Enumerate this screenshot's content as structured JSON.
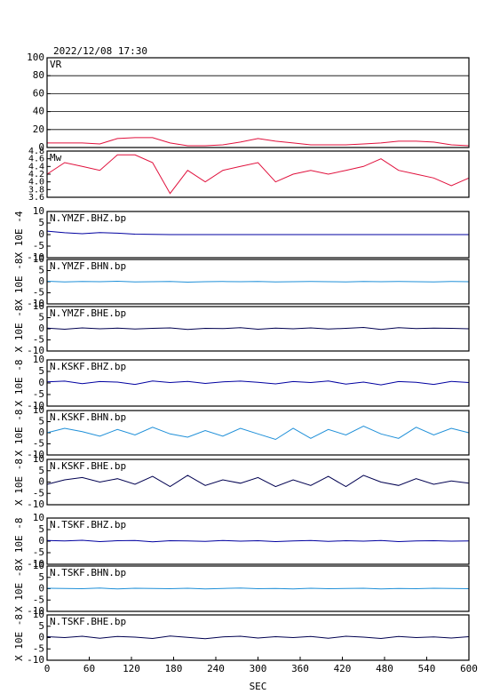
{
  "header": {
    "title": "2022/12/08 17:30"
  },
  "chart_data": [
    {
      "type": "line",
      "label": "VR",
      "xlim": [
        0,
        600
      ],
      "ylim": [
        0,
        100
      ],
      "yticks": [
        0,
        20,
        40,
        60,
        80,
        100
      ],
      "grid": true,
      "x": [
        0,
        25,
        50,
        75,
        100,
        125,
        150,
        175,
        200,
        225,
        250,
        275,
        300,
        325,
        350,
        375,
        400,
        425,
        450,
        475,
        500,
        525,
        550,
        575,
        600
      ],
      "series": [
        {
          "color": "#e0103c",
          "values": [
            5,
            5,
            5,
            4,
            10,
            11,
            11,
            5,
            2,
            2,
            3,
            6,
            10,
            7,
            5,
            3,
            3,
            3,
            4,
            5,
            7,
            7,
            6,
            3,
            2
          ]
        }
      ]
    },
    {
      "type": "line",
      "label": "Mw",
      "xlim": [
        0,
        600
      ],
      "ylim": [
        3.6,
        4.8
      ],
      "yticks": [
        3.6,
        3.8,
        {
          "value": 4,
          "label": "4.0"
        },
        4.2,
        4.4,
        4.6,
        4.8
      ],
      "grid": false,
      "x": [
        0,
        25,
        50,
        75,
        100,
        125,
        150,
        175,
        200,
        225,
        250,
        275,
        300,
        325,
        350,
        375,
        400,
        425,
        450,
        475,
        500,
        525,
        550,
        575,
        600
      ],
      "series": [
        {
          "color": "#e0103c",
          "values": [
            4.2,
            4.5,
            4.4,
            4.3,
            4.7,
            4.7,
            4.5,
            3.7,
            4.3,
            4.0,
            4.3,
            4.4,
            4.5,
            4.0,
            4.2,
            4.3,
            4.2,
            4.3,
            4.4,
            4.6,
            4.3,
            4.2,
            4.1,
            3.9,
            4.1
          ]
        }
      ]
    },
    {
      "type": "line",
      "label": "N.YMZF.BHZ.bp",
      "y_label": "X 10E -4",
      "xlim": [
        0,
        600
      ],
      "ylim": [
        -10,
        10
      ],
      "yticks": [
        -10,
        -5,
        0,
        5,
        10
      ],
      "grid": false,
      "x": [
        0,
        25,
        50,
        75,
        100,
        125,
        150,
        175,
        200,
        225,
        250,
        275,
        300,
        325,
        350,
        375,
        400,
        425,
        450,
        475,
        500,
        525,
        550,
        575,
        600
      ],
      "series": [
        {
          "color": "#0000a0",
          "values": [
            1.5,
            0.8,
            0.4,
            0.9,
            0.6,
            0.2,
            0.1,
            0,
            0,
            0,
            0,
            0,
            0,
            0,
            0,
            0,
            0,
            0,
            0,
            0,
            0,
            0,
            0,
            0,
            0
          ]
        }
      ]
    },
    {
      "type": "line",
      "label": "N.YMZF.BHN.bp",
      "y_label": "X 10E -8",
      "xlim": [
        0,
        600
      ],
      "ylim": [
        -10,
        10
      ],
      "yticks": [
        -10,
        -5,
        0,
        5,
        10
      ],
      "grid": false,
      "x": [
        0,
        25,
        50,
        75,
        100,
        125,
        150,
        175,
        200,
        225,
        250,
        275,
        300,
        325,
        350,
        375,
        400,
        425,
        450,
        475,
        500,
        525,
        550,
        575,
        600
      ],
      "series": [
        {
          "color": "#1e8fd8",
          "values": [
            0.2,
            -0.1,
            0.1,
            0,
            0.2,
            -0.1,
            0,
            0.1,
            -0.2,
            0,
            0.1,
            0,
            0.1,
            -0.1,
            0,
            0.1,
            0,
            -0.1,
            0.1,
            0,
            0.1,
            0,
            -0.1,
            0.1,
            0
          ]
        }
      ]
    },
    {
      "type": "line",
      "label": "N.YMZF.BHE.bp",
      "y_label": "X 10E -8",
      "xlim": [
        0,
        600
      ],
      "ylim": [
        -10,
        10
      ],
      "yticks": [
        -10,
        -5,
        0,
        5,
        10
      ],
      "grid": false,
      "x": [
        0,
        25,
        50,
        75,
        100,
        125,
        150,
        175,
        200,
        225,
        250,
        275,
        300,
        325,
        350,
        375,
        400,
        425,
        450,
        475,
        500,
        525,
        550,
        575,
        600
      ],
      "series": [
        {
          "color": "#000050",
          "values": [
            0.3,
            -0.2,
            0.4,
            0,
            0.3,
            -0.1,
            0.2,
            0.4,
            -0.3,
            0.2,
            0.1,
            0.5,
            -0.2,
            0.3,
            0,
            0.4,
            -0.1,
            0.2,
            0.6,
            -0.3,
            0.5,
            0.1,
            0.3,
            0.2,
            0
          ]
        }
      ]
    },
    {
      "type": "line",
      "label": "N.KSKF.BHZ.bp",
      "y_label": "X 10E -8",
      "xlim": [
        0,
        600
      ],
      "ylim": [
        -10,
        10
      ],
      "yticks": [
        -10,
        -5,
        0,
        5,
        10
      ],
      "grid": false,
      "x": [
        0,
        25,
        50,
        75,
        100,
        125,
        150,
        175,
        200,
        225,
        250,
        275,
        300,
        325,
        350,
        375,
        400,
        425,
        450,
        475,
        500,
        525,
        550,
        575,
        600
      ],
      "series": [
        {
          "color": "#0000a0",
          "values": [
            0.5,
            0.8,
            -0.3,
            0.6,
            0.4,
            -0.6,
            0.9,
            0.2,
            0.7,
            -0.2,
            0.5,
            0.8,
            0.3,
            -0.4,
            0.6,
            0.2,
            0.9,
            -0.5,
            0.4,
            -0.8,
            0.6,
            0.3,
            -0.6,
            0.7,
            0.2
          ]
        }
      ]
    },
    {
      "type": "line",
      "label": "N.KSKF.BHN.bp",
      "y_label": "X 10E -8",
      "xlim": [
        0,
        600
      ],
      "ylim": [
        -10,
        10
      ],
      "yticks": [
        -10,
        -5,
        0,
        5,
        10
      ],
      "grid": false,
      "x": [
        0,
        25,
        50,
        75,
        100,
        125,
        150,
        175,
        200,
        225,
        250,
        275,
        300,
        325,
        350,
        375,
        400,
        425,
        450,
        475,
        500,
        525,
        550,
        575,
        600
      ],
      "series": [
        {
          "color": "#1e8fd8",
          "values": [
            0,
            2,
            0.5,
            -1.5,
            1.5,
            -1,
            2.5,
            -0.5,
            -2,
            1,
            -1.5,
            2,
            -0.5,
            -3,
            2,
            -2.5,
            1.5,
            -1,
            3,
            -0.5,
            -2.5,
            2.5,
            -1,
            2,
            0
          ]
        }
      ]
    },
    {
      "type": "line",
      "label": "N.KSKF.BHE.bp",
      "y_label": "X 10E -8",
      "xlim": [
        0,
        600
      ],
      "ylim": [
        -10,
        10
      ],
      "yticks": [
        -10,
        -5,
        0,
        5,
        10
      ],
      "grid": false,
      "x": [
        0,
        25,
        50,
        75,
        100,
        125,
        150,
        175,
        200,
        225,
        250,
        275,
        300,
        325,
        350,
        375,
        400,
        425,
        450,
        475,
        500,
        525,
        550,
        575,
        600
      ],
      "series": [
        {
          "color": "#000050",
          "values": [
            -1,
            1,
            2,
            0,
            1.5,
            -1,
            2.5,
            -2,
            3,
            -1.5,
            1,
            -0.5,
            2,
            -2,
            1,
            -1.5,
            2.5,
            -2,
            3,
            0,
            -1.5,
            1.5,
            -1,
            0.5,
            -0.5
          ]
        }
      ]
    },
    {
      "type": "line",
      "label": "N.TSKF.BHZ.bp",
      "y_label": "X 10E -8",
      "xlim": [
        0,
        600
      ],
      "ylim": [
        -10,
        10
      ],
      "yticks": [
        -10,
        -5,
        0,
        5,
        10
      ],
      "grid": false,
      "x": [
        0,
        25,
        50,
        75,
        100,
        125,
        150,
        175,
        200,
        225,
        250,
        275,
        300,
        325,
        350,
        375,
        400,
        425,
        450,
        475,
        500,
        525,
        550,
        575,
        600
      ],
      "series": [
        {
          "color": "#0000a0",
          "values": [
            0.3,
            0.1,
            0.4,
            -0.2,
            0.2,
            0.3,
            -0.3,
            0.2,
            0.1,
            -0.1,
            0.3,
            0,
            0.2,
            -0.2,
            0.1,
            0.3,
            -0.1,
            0.2,
            0,
            0.3,
            -0.2,
            0.1,
            0.2,
            0,
            0.1
          ]
        }
      ]
    },
    {
      "type": "line",
      "label": "N.TSKF.BHN.bp",
      "y_label": "X 10E -8",
      "xlim": [
        0,
        600
      ],
      "ylim": [
        -10,
        10
      ],
      "yticks": [
        -10,
        -5,
        0,
        5,
        10
      ],
      "grid": false,
      "x": [
        0,
        25,
        50,
        75,
        100,
        125,
        150,
        175,
        200,
        225,
        250,
        275,
        300,
        325,
        350,
        375,
        400,
        425,
        450,
        475,
        500,
        525,
        550,
        575,
        600
      ],
      "series": [
        {
          "color": "#1e8fd8",
          "values": [
            0.2,
            0.1,
            0,
            0.3,
            -0.1,
            0.2,
            0.1,
            0,
            0.2,
            -0.1,
            0.1,
            0.3,
            0,
            0.1,
            -0.1,
            0.2,
            0,
            0.1,
            0.2,
            -0.1,
            0.1,
            0,
            0.2,
            0.1,
            0
          ]
        }
      ]
    },
    {
      "type": "line",
      "label": "N.TSKF.BHE.bp",
      "y_label": "X 10E -8",
      "x_label": "SEC",
      "xlim": [
        0,
        600
      ],
      "xticks": [
        0,
        60,
        120,
        180,
        240,
        300,
        360,
        420,
        480,
        540,
        600
      ],
      "ylim": [
        -10,
        10
      ],
      "yticks": [
        -10,
        -5,
        0,
        5,
        10
      ],
      "grid": false,
      "x": [
        0,
        25,
        50,
        75,
        100,
        125,
        150,
        175,
        200,
        225,
        250,
        275,
        300,
        325,
        350,
        375,
        400,
        425,
        450,
        475,
        500,
        525,
        550,
        575,
        600
      ],
      "series": [
        {
          "color": "#000050",
          "values": [
            0.4,
            0,
            0.6,
            -0.3,
            0.5,
            0.2,
            -0.4,
            0.7,
            0.1,
            -0.5,
            0.3,
            0.6,
            -0.2,
            0.4,
            0,
            0.5,
            -0.3,
            0.6,
            0.2,
            -0.4,
            0.5,
            0,
            0.3,
            -0.2,
            0.4
          ]
        }
      ]
    }
  ]
}
